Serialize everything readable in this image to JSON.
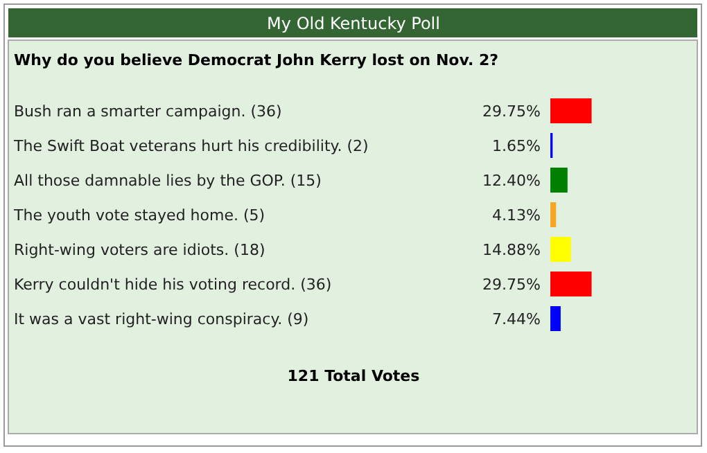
{
  "chart_data": {
    "type": "bar",
    "orientation": "horizontal",
    "title": "My Old Kentucky Poll",
    "subtitle": "Why do you believe Democrat John Kerry lost on Nov. 2?",
    "categories": [
      "Bush ran a smarter campaign. (36)",
      "The Swift Boat veterans hurt his credibility. (2)",
      "All those damnable lies by the GOP. (15)",
      "The youth vote stayed home. (5)",
      "Right-wing voters are idiots. (18)",
      "Kerry couldn't hide his voting record. (36)",
      "It was a vast right-wing conspiracy. (9)"
    ],
    "values": [
      29.75,
      1.65,
      12.4,
      4.13,
      14.88,
      29.75,
      7.44
    ],
    "value_labels": [
      "29.75%",
      "1.65%",
      "12.40%",
      "4.13%",
      "14.88%",
      "29.75%",
      "7.44%"
    ],
    "colors": [
      "#ff0000",
      "#0000ff",
      "#008000",
      "#f5a623",
      "#ffff00",
      "#ff0000",
      "#0000ff"
    ],
    "annotations": [
      "121 Total Votes"
    ]
  }
}
